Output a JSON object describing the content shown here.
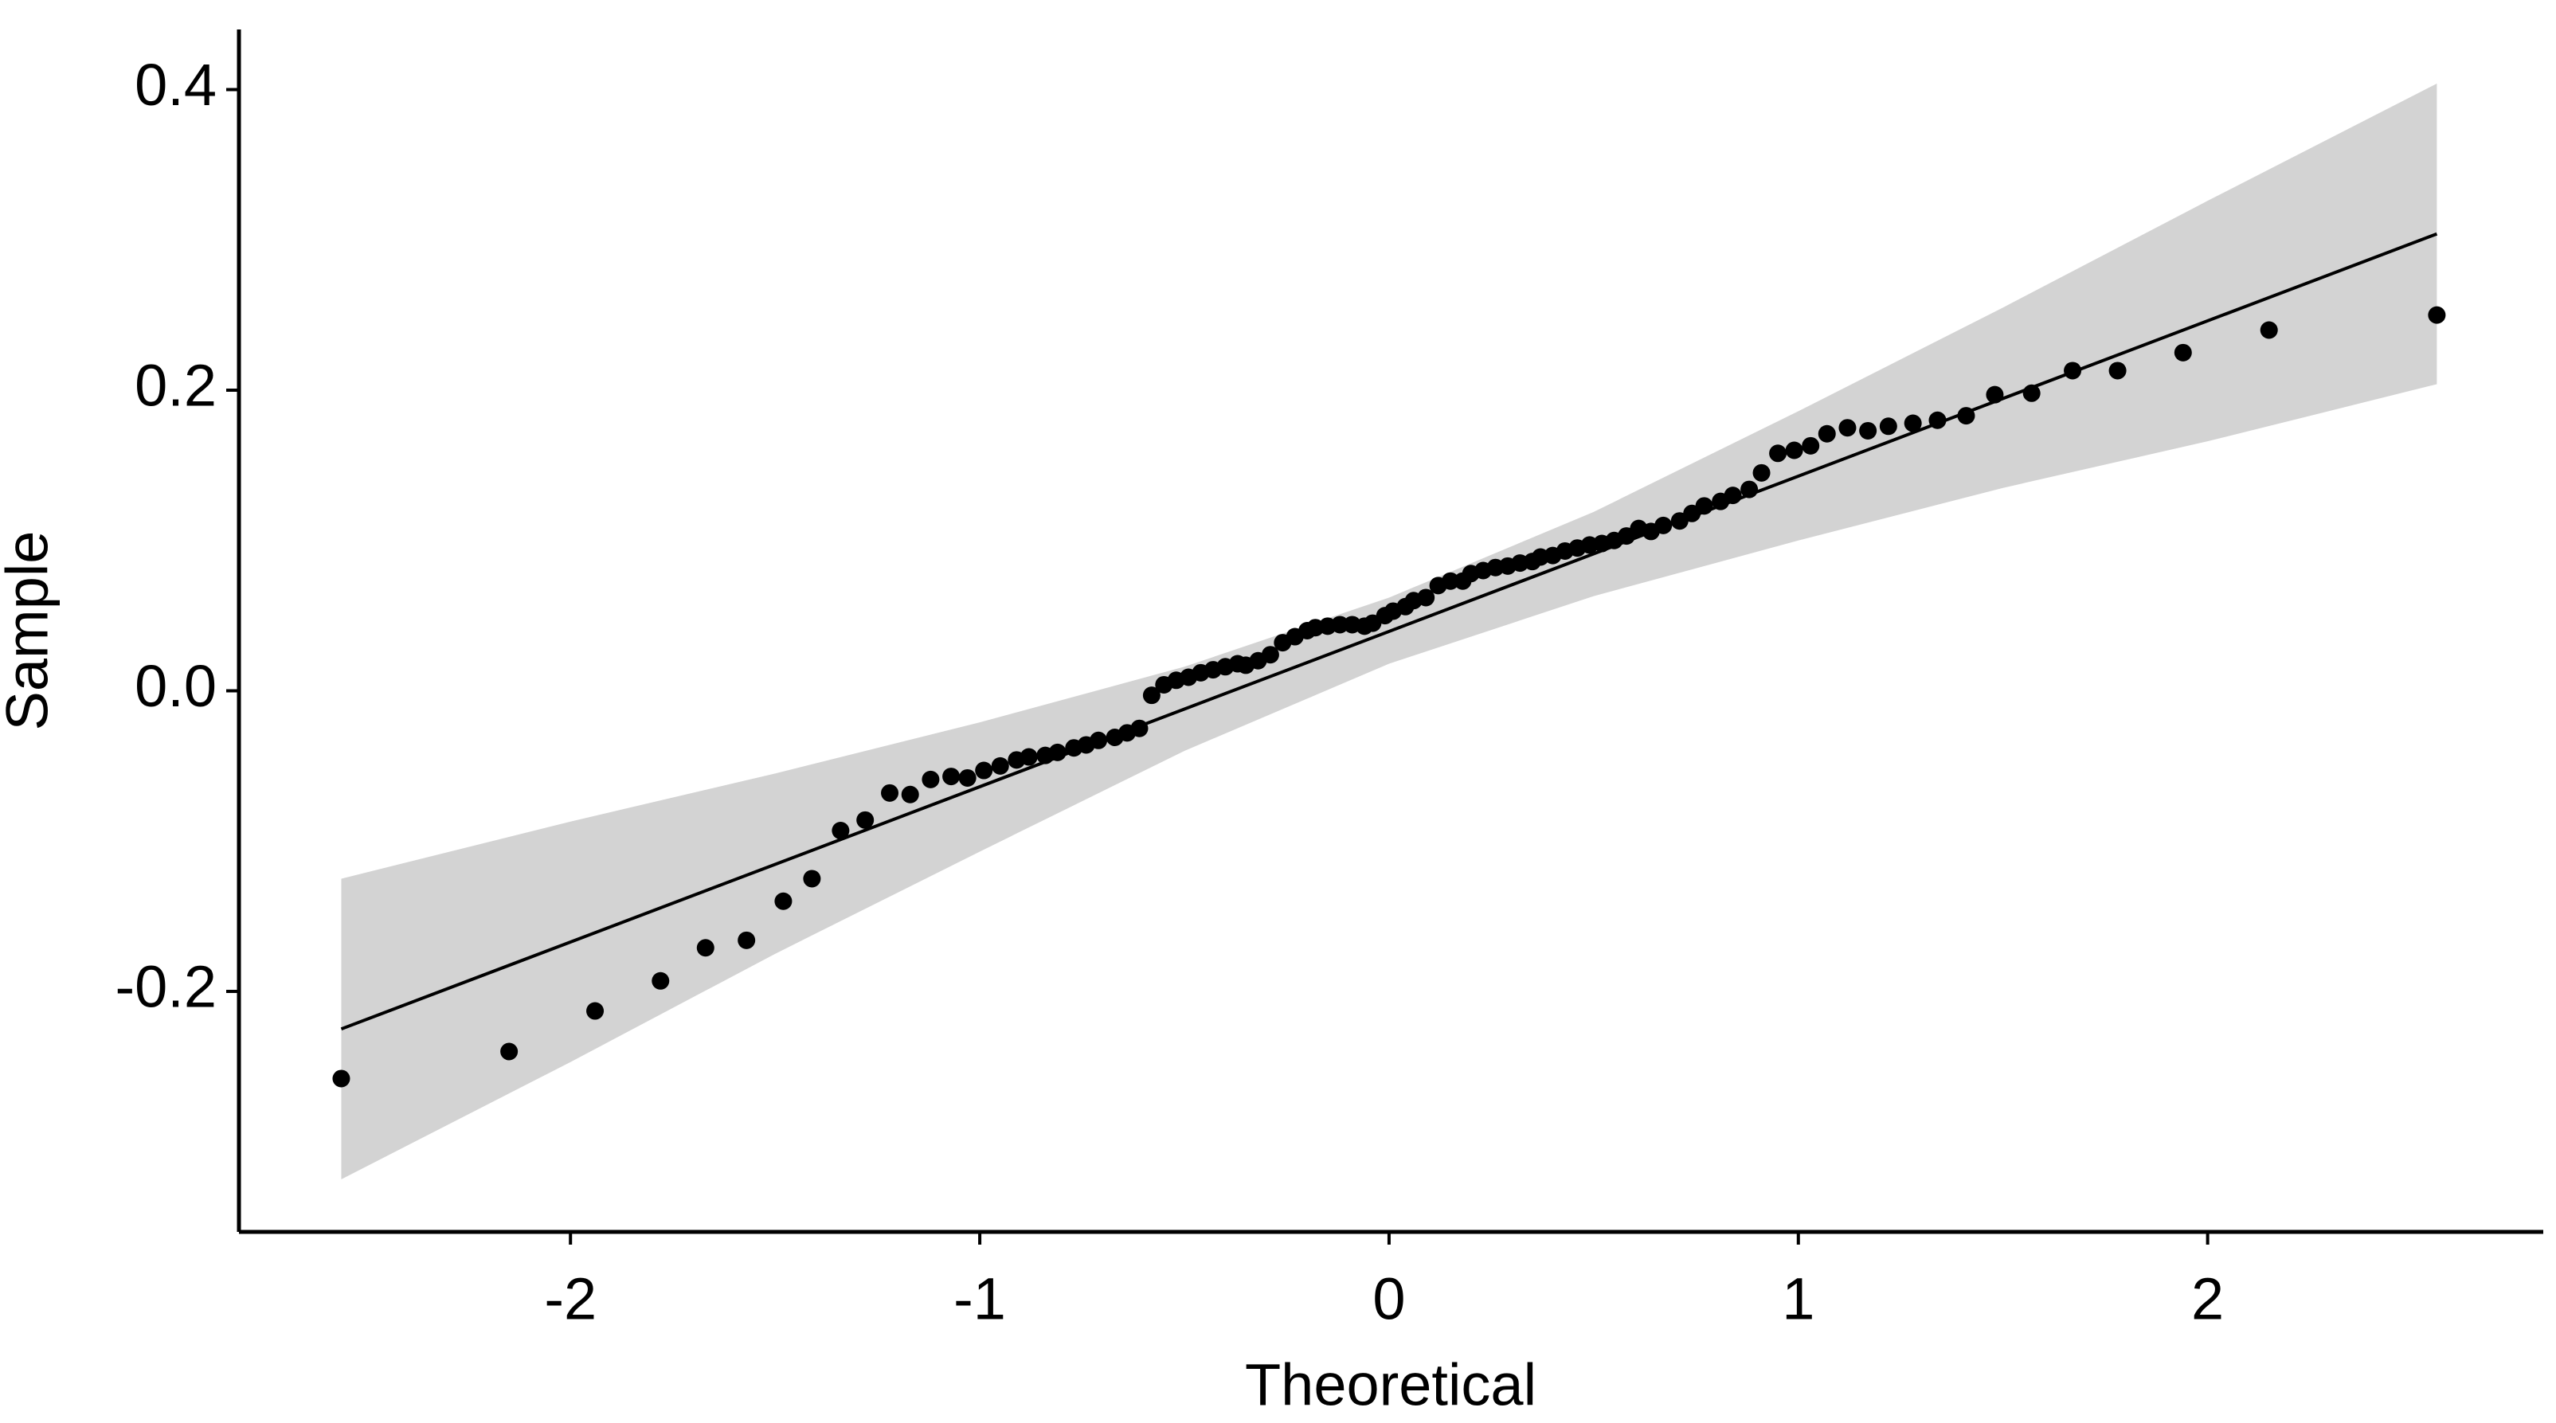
{
  "chart_data": {
    "type": "scatter",
    "x_label": "Theoretical",
    "y_label": "Sample",
    "color": "#000000",
    "x": [
      -2.56,
      -2.15,
      -1.94,
      -1.78,
      -1.67,
      -1.57,
      -1.48,
      -1.41,
      -1.34,
      -1.28,
      -1.22,
      -1.17,
      -1.12,
      -1.07,
      -1.03,
      -0.99,
      -0.95,
      -0.91,
      -0.88,
      -0.84,
      -0.81,
      -0.77,
      -0.74,
      -0.71,
      -0.67,
      -0.64,
      -0.61,
      -0.58,
      -0.55,
      -0.52,
      -0.49,
      -0.46,
      -0.43,
      -0.4,
      -0.37,
      -0.35,
      -0.32,
      -0.29,
      -0.26,
      -0.23,
      -0.2,
      -0.18,
      -0.15,
      -0.12,
      -0.09,
      -0.06,
      -0.04,
      -0.01,
      0.01,
      0.04,
      0.06,
      0.09,
      0.12,
      0.15,
      0.18,
      0.2,
      0.23,
      0.26,
      0.29,
      0.32,
      0.35,
      0.37,
      0.4,
      0.43,
      0.46,
      0.49,
      0.52,
      0.55,
      0.58,
      0.61,
      0.64,
      0.67,
      0.71,
      0.74,
      0.77,
      0.81,
      0.84,
      0.88,
      0.91,
      0.95,
      0.99,
      1.03,
      1.07,
      1.12,
      1.17,
      1.22,
      1.28,
      1.34,
      1.41,
      1.48,
      1.57,
      1.67,
      1.78,
      1.94,
      2.15,
      2.56
    ],
    "values": [
      -0.258,
      -0.24,
      -0.213,
      -0.193,
      -0.171,
      -0.166,
      -0.14,
      -0.125,
      -0.093,
      -0.086,
      -0.068,
      -0.069,
      -0.059,
      -0.057,
      -0.058,
      -0.053,
      -0.05,
      -0.046,
      -0.044,
      -0.043,
      -0.041,
      -0.038,
      -0.036,
      -0.033,
      -0.031,
      -0.028,
      -0.025,
      -0.003,
      0.004,
      0.007,
      0.009,
      0.012,
      0.014,
      0.016,
      0.018,
      0.017,
      0.02,
      0.024,
      0.032,
      0.036,
      0.04,
      0.042,
      0.043,
      0.044,
      0.044,
      0.043,
      0.045,
      0.05,
      0.053,
      0.056,
      0.06,
      0.062,
      0.07,
      0.073,
      0.073,
      0.078,
      0.08,
      0.082,
      0.083,
      0.085,
      0.086,
      0.089,
      0.09,
      0.093,
      0.095,
      0.097,
      0.098,
      0.1,
      0.103,
      0.108,
      0.106,
      0.11,
      0.113,
      0.118,
      0.123,
      0.126,
      0.13,
      0.134,
      0.145,
      0.158,
      0.16,
      0.163,
      0.171,
      0.175,
      0.173,
      0.176,
      0.178,
      0.18,
      0.183,
      0.197,
      0.198,
      0.213,
      0.213,
      0.225,
      0.24,
      0.25
    ],
    "reference_line": {
      "x": [
        -2.56,
        2.56
      ],
      "values": [
        -0.225,
        0.304
      ],
      "color": "#000000"
    },
    "band": {
      "x": [
        -2.56,
        -2,
        -1.5,
        -1,
        -0.5,
        0,
        0.5,
        1,
        1.5,
        2,
        2.56
      ],
      "lower": [
        -0.325,
        -0.247,
        -0.175,
        -0.107,
        -0.04,
        0.018,
        0.063,
        0.1,
        0.135,
        0.166,
        0.204
      ],
      "upper": [
        -0.125,
        -0.087,
        -0.055,
        -0.021,
        0.016,
        0.062,
        0.119,
        0.186,
        0.255,
        0.326,
        0.404
      ],
      "color": "#d3d3d3"
    },
    "xlim": [
      -2.81,
      2.82
    ],
    "ylim": [
      -0.36,
      0.44
    ],
    "xticks": [
      -2,
      -1,
      0,
      1,
      2
    ],
    "yticks": [
      -0.2,
      {
        "value": 0,
        "label": "0.0"
      },
      0.2,
      0.4
    ]
  }
}
